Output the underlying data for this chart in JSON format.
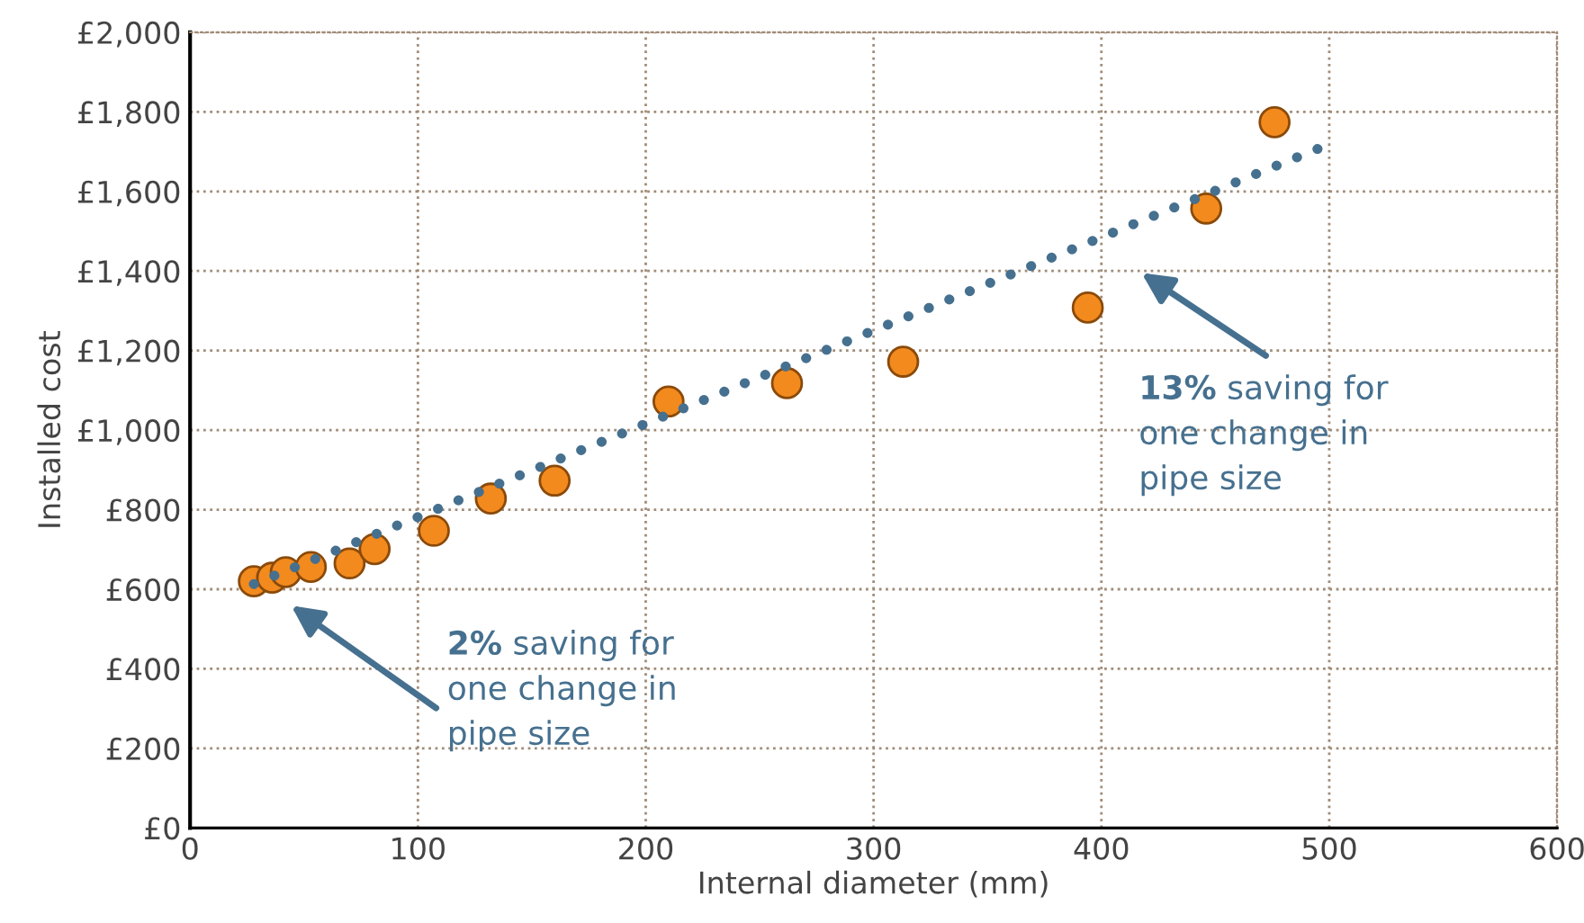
{
  "chart_data": {
    "type": "scatter",
    "xlabel": "Internal diameter (mm)",
    "ylabel": "Installed cost",
    "xlim": [
      0,
      600
    ],
    "xticks": [
      0,
      100,
      200,
      300,
      400,
      500,
      600
    ],
    "ylim": [
      0,
      2000
    ],
    "yticks": [
      {
        "value": 0,
        "label": "£0"
      },
      {
        "value": 200,
        "label": "£200"
      },
      {
        "value": 400,
        "label": "£400"
      },
      {
        "value": 600,
        "label": "£600"
      },
      {
        "value": 800,
        "label": "£800"
      },
      {
        "value": 1000,
        "label": "£1,000"
      },
      {
        "value": 1200,
        "label": "£1,200"
      },
      {
        "value": 1400,
        "label": "£1,400"
      },
      {
        "value": 1600,
        "label": "£1,600"
      },
      {
        "value": 1800,
        "label": "£1,800"
      },
      {
        "value": 2000,
        "label": "£2,000"
      }
    ],
    "grid": true,
    "marker": "circle",
    "series": [
      {
        "color": "#f28a1e",
        "x": [
          28,
          36,
          42,
          53,
          70,
          81,
          107,
          132,
          160,
          210,
          262,
          313,
          394,
          446,
          476
        ],
        "values": [
          620,
          629,
          643,
          656,
          665,
          701,
          747,
          828,
          873,
          1072,
          1118,
          1172,
          1308,
          1557,
          1774
        ]
      },
      {
        "type": "line",
        "color": "#46708f",
        "line_style": "dotted",
        "marker": "none",
        "x": [
          28,
          500
        ],
        "values": [
          613,
          1719
        ]
      }
    ],
    "annotations": [
      "2% saving for\none change in\npipe size",
      "13% saving for\none change in\npipe size"
    ]
  }
}
